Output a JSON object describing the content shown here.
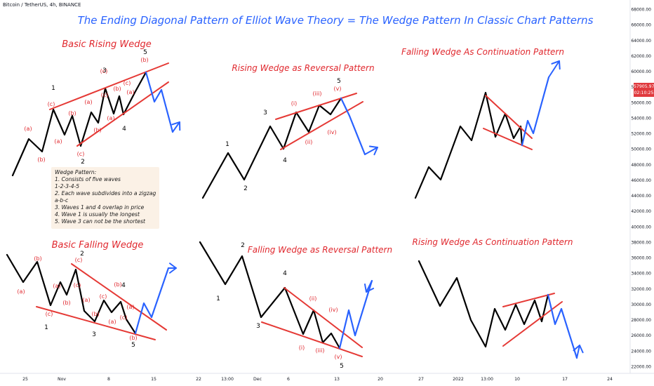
{
  "header": {
    "text": "Bitcoin / TetherUS, 4h, BINANCE"
  },
  "title": {
    "text": "The Ending Diagonal Pattern of Elliot Wave Theory = The Wedge Pattern In Classic Chart Patterns"
  },
  "colors": {
    "title": "#2962ff",
    "pattern_title": "#e0282e",
    "price_path": "#000000",
    "continuation": "#2962ff",
    "trendline": "#e53935",
    "wave_label": "#e0282e",
    "major_label": "#000000",
    "price_tag": "#e03a3e"
  },
  "price_axis": {
    "ticks": [
      "68000.00",
      "66000.00",
      "64000.00",
      "62000.00",
      "60000.00",
      "58000.00",
      "56000.00",
      "54000.00",
      "52000.00",
      "50000.00",
      "48000.00",
      "46000.00",
      "44000.00",
      "42000.00",
      "40000.00",
      "38000.00",
      "36000.00",
      "34000.00",
      "32000.00",
      "30000.00",
      "28000.00",
      "26000.00",
      "24000.00",
      "22000.00"
    ],
    "last_price": "57905.97",
    "countdown": "02:10:25"
  },
  "time_axis": {
    "ticks": [
      "25",
      "Nov",
      "8",
      "15",
      "22",
      "13:00",
      "Dec",
      "6",
      "13",
      "20",
      "27",
      "2022",
      "13:00",
      "10",
      "17",
      "24"
    ]
  },
  "note": {
    "lines": [
      "Wedge Pattern:",
      "1. Consists of five waves",
      "1-2-3-4-5",
      "2. Each wave subdivides into a zigzag",
      "a-b-c",
      "3. Waves 1 and 4 overlap in price",
      "4. Wave 1 is usually the longest",
      "5. Wave 3 can not be the shortest"
    ]
  },
  "chart_data": [
    {
      "type": "line",
      "title": "Basic Rising Wedge",
      "labels": [
        "1",
        "2",
        "3",
        "4",
        "5",
        "(a)",
        "(b)",
        "(c)",
        "(a)",
        "(b)",
        "(c)",
        "(a)",
        "(b)",
        "(c)",
        "(a)",
        "(b)",
        "(c)",
        "(a)",
        "(b)",
        "(c)"
      ]
    },
    {
      "type": "line",
      "title": "Rising Wedge  as Reversal Pattern",
      "labels": [
        "1",
        "2",
        "3",
        "4",
        "5",
        "(i)",
        "(ii)",
        "(iii)",
        "(iv)",
        "(v)"
      ]
    },
    {
      "type": "line",
      "title": "Falling Wedge As Continuation Pattern",
      "labels": []
    },
    {
      "type": "line",
      "title": "Basic Falling Wedge",
      "labels": [
        "1",
        "2",
        "3",
        "4",
        "5",
        "(a)",
        "(b)",
        "(c)",
        "(a)",
        "(b)",
        "(c)",
        "(a)",
        "(b)",
        "(c)",
        "(a)",
        "(b)",
        "(c)",
        "(a)",
        "(b)",
        "(c)"
      ]
    },
    {
      "type": "line",
      "title": "Falling Wedge as Reversal Pattern",
      "labels": [
        "1",
        "2",
        "3",
        "4",
        "5",
        "(i)",
        "(ii)",
        "(iii)",
        "(iv)",
        "(v)"
      ]
    },
    {
      "type": "line",
      "title": "Rising Wedge As Continuation Pattern",
      "labels": []
    }
  ]
}
